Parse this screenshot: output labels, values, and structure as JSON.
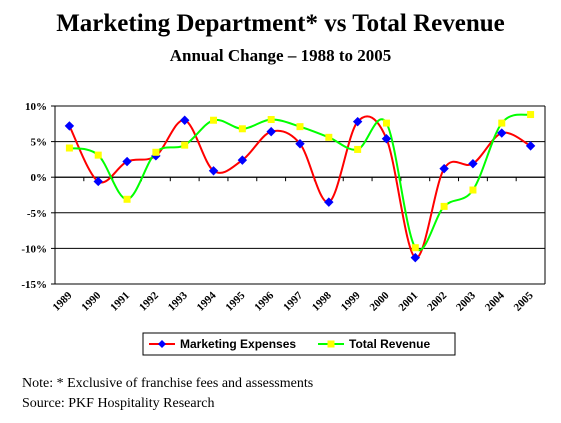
{
  "chart_data": {
    "type": "line",
    "title": "Marketing Department* vs Total Revenue",
    "subtitle": "Annual Change – 1988 to 2005",
    "categories": [
      "1989",
      "1990",
      "1991",
      "1992",
      "1993",
      "1994",
      "1995",
      "1996",
      "1997",
      "1998",
      "1999",
      "2000",
      "2001",
      "2002",
      "2003",
      "2004",
      "2005"
    ],
    "y_ticks": [
      "10%",
      "5%",
      "0%",
      "-5%",
      "-10%",
      "-15%"
    ],
    "ylim": [
      -15,
      10
    ],
    "grid": "horizontal",
    "legend_position": "bottom",
    "series": [
      {
        "name": "Marketing Expenses",
        "color": "#ff0000",
        "marker": "diamond",
        "marker_color": "#0000ff",
        "values": [
          7.2,
          -0.6,
          2.2,
          3.0,
          8.0,
          0.9,
          2.4,
          6.4,
          4.7,
          -3.5,
          7.8,
          5.4,
          -11.3,
          1.2,
          1.9,
          6.2,
          4.4
        ]
      },
      {
        "name": "Total Revenue",
        "color": "#00ff00",
        "marker": "square",
        "marker_color": "#ffff00",
        "values": [
          4.1,
          3.1,
          -3.1,
          3.5,
          4.5,
          8.0,
          6.8,
          8.1,
          7.1,
          5.6,
          3.9,
          7.6,
          -9.9,
          -4.1,
          -1.8,
          7.6,
          8.8
        ]
      }
    ]
  },
  "notes": {
    "note": "Note: * Exclusive of franchise fees and assessments",
    "source": "Source: PKF Hospitality Research"
  }
}
